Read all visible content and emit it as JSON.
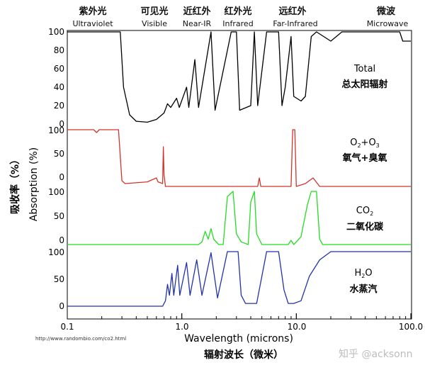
{
  "chart_data": {
    "type": "line",
    "x_axis": {
      "label": "Wavelength (microns)",
      "label_cn": "辐射波长（微米）",
      "scale": "log",
      "range": [
        0.1,
        100
      ],
      "ticks": [
        "0.1",
        "1.0",
        "10.0",
        "100.0"
      ]
    },
    "y_axis": {
      "label": "Absorption (%)",
      "label_cn": "吸收率（%）",
      "range": [
        0,
        100
      ]
    },
    "bands": [
      {
        "cn": "紫外光",
        "en": "Ultraviolet"
      },
      {
        "cn": "可见光",
        "en": "Visible"
      },
      {
        "cn": "近红外",
        "en": "Near-IR"
      },
      {
        "cn": "红外光",
        "en": "Infrared"
      },
      {
        "cn": "远红外",
        "en": "Far-Infrared"
      },
      {
        "cn": "微波",
        "en": "Microwave"
      }
    ],
    "panels": [
      {
        "key": "total",
        "label_en": "Total",
        "label_cn": "总太阳辐射",
        "color": "#000000",
        "tick_labels": [
          "100",
          "80",
          "60",
          "40",
          "20",
          "0"
        ],
        "points": [
          [
            0.1,
            100
          ],
          [
            0.29,
            100
          ],
          [
            0.31,
            40
          ],
          [
            0.35,
            10
          ],
          [
            0.4,
            3
          ],
          [
            0.5,
            2
          ],
          [
            0.6,
            5
          ],
          [
            0.7,
            12
          ],
          [
            0.75,
            22
          ],
          [
            0.8,
            18
          ],
          [
            0.9,
            28
          ],
          [
            0.95,
            18
          ],
          [
            1.1,
            40
          ],
          [
            1.15,
            18
          ],
          [
            1.3,
            70
          ],
          [
            1.4,
            18
          ],
          [
            1.8,
            100
          ],
          [
            1.95,
            15
          ],
          [
            2.7,
            100
          ],
          [
            3.0,
            100
          ],
          [
            3.2,
            15
          ],
          [
            4.0,
            20
          ],
          [
            4.3,
            100
          ],
          [
            4.6,
            20
          ],
          [
            5.5,
            100
          ],
          [
            7.0,
            100
          ],
          [
            7.5,
            20
          ],
          [
            8.0,
            40
          ],
          [
            9.0,
            95
          ],
          [
            9.5,
            30
          ],
          [
            11.0,
            25
          ],
          [
            12.0,
            30
          ],
          [
            13.5,
            95
          ],
          [
            15,
            100
          ],
          [
            20,
            90
          ],
          [
            25,
            100
          ],
          [
            40,
            100
          ],
          [
            80,
            100
          ],
          [
            85,
            90
          ],
          [
            100,
            90
          ]
        ]
      },
      {
        "key": "o2o3",
        "label_en": "O2+O3",
        "label_cn": "氧气+臭氧",
        "color": "#d0342c",
        "tick_labels": [
          "100",
          "50",
          "0"
        ],
        "points": [
          [
            0.1,
            100
          ],
          [
            0.17,
            100
          ],
          [
            0.18,
            95
          ],
          [
            0.19,
            100
          ],
          [
            0.28,
            100
          ],
          [
            0.3,
            10
          ],
          [
            0.32,
            5
          ],
          [
            0.5,
            8
          ],
          [
            0.6,
            15
          ],
          [
            0.62,
            8
          ],
          [
            0.68,
            5
          ],
          [
            0.69,
            70
          ],
          [
            0.7,
            20
          ],
          [
            0.72,
            0
          ],
          [
            4.6,
            0
          ],
          [
            4.75,
            15
          ],
          [
            4.9,
            0
          ],
          [
            9.0,
            0
          ],
          [
            9.3,
            100
          ],
          [
            9.7,
            100
          ],
          [
            10.0,
            0
          ],
          [
            12.0,
            5
          ],
          [
            14.0,
            15
          ],
          [
            16.0,
            0
          ],
          [
            100,
            0
          ]
        ]
      },
      {
        "key": "co2",
        "label_en": "CO2",
        "label_cn": "二氧化碳",
        "color": "#22dd22",
        "tick_labels": [
          "100",
          "50",
          "0"
        ],
        "points": [
          [
            0.1,
            0
          ],
          [
            1.4,
            0
          ],
          [
            1.5,
            5
          ],
          [
            1.6,
            25
          ],
          [
            1.7,
            10
          ],
          [
            1.8,
            30
          ],
          [
            1.9,
            10
          ],
          [
            2.1,
            0
          ],
          [
            2.3,
            0
          ],
          [
            2.5,
            90
          ],
          [
            2.8,
            100
          ],
          [
            3.0,
            20
          ],
          [
            3.3,
            5
          ],
          [
            3.8,
            0
          ],
          [
            4.0,
            80
          ],
          [
            4.3,
            100
          ],
          [
            4.5,
            20
          ],
          [
            5.0,
            0
          ],
          [
            8.5,
            0
          ],
          [
            9.0,
            8
          ],
          [
            9.5,
            0
          ],
          [
            10.0,
            5
          ],
          [
            11.0,
            15
          ],
          [
            12.5,
            75
          ],
          [
            13.5,
            100
          ],
          [
            15.0,
            100
          ],
          [
            16.0,
            10
          ],
          [
            17.0,
            0
          ],
          [
            100,
            0
          ]
        ]
      },
      {
        "key": "h2o",
        "label_en": "H2O",
        "label_cn": "水蒸汽",
        "color": "#2233aa",
        "tick_labels": [
          "100",
          "50",
          "0"
        ],
        "points": [
          [
            0.1,
            0
          ],
          [
            0.68,
            0
          ],
          [
            0.72,
            10
          ],
          [
            0.75,
            40
          ],
          [
            0.78,
            20
          ],
          [
            0.82,
            60
          ],
          [
            0.85,
            20
          ],
          [
            0.92,
            75
          ],
          [
            0.96,
            20
          ],
          [
            1.1,
            80
          ],
          [
            1.18,
            20
          ],
          [
            1.35,
            85
          ],
          [
            1.5,
            20
          ],
          [
            1.8,
            98
          ],
          [
            2.05,
            15
          ],
          [
            2.5,
            100
          ],
          [
            3.1,
            100
          ],
          [
            3.3,
            20
          ],
          [
            3.6,
            5
          ],
          [
            4.5,
            5
          ],
          [
            5.5,
            100
          ],
          [
            7.0,
            100
          ],
          [
            7.8,
            30
          ],
          [
            8.5,
            5
          ],
          [
            9.5,
            5
          ],
          [
            11.0,
            10
          ],
          [
            13.0,
            55
          ],
          [
            16.0,
            85
          ],
          [
            20.0,
            100
          ],
          [
            100,
            100
          ]
        ]
      }
    ]
  },
  "source_url": "http://www.randombio.com/co2.html",
  "watermark": "知乎 @acksonn"
}
